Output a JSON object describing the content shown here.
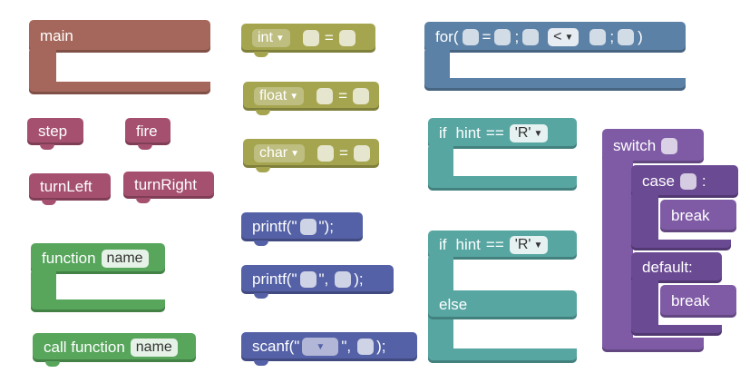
{
  "blocks": {
    "main": {
      "label": "main",
      "color": "#a5675b"
    },
    "step": {
      "label": "step",
      "color": "#a5506f"
    },
    "fire": {
      "label": "fire",
      "color": "#a5506f"
    },
    "turn_left": {
      "label": "turnLeft",
      "color": "#a5506f"
    },
    "turn_right": {
      "label": "turnRight",
      "color": "#a5506f"
    },
    "function": {
      "label": "function",
      "param": "name",
      "color": "#57a65c"
    },
    "call_function": {
      "label": "call function",
      "param": "name",
      "color": "#57a65c"
    },
    "int_decl": {
      "type": "int",
      "op": "=",
      "color": "#a5a54f"
    },
    "float_decl": {
      "type": "float",
      "op": "=",
      "color": "#a5a54f"
    },
    "char_decl": {
      "type": "char",
      "op": "=",
      "color": "#a5a54f"
    },
    "printf_1": {
      "prefix": "printf(\"",
      "suffix": "\");",
      "color": "#5461a6"
    },
    "printf_2": {
      "prefix": "printf(\"",
      "middle": "\",",
      "suffix": ");",
      "color": "#5461a6"
    },
    "scanf": {
      "prefix": "scanf(\"",
      "middle": "\",",
      "suffix": ");",
      "color": "#5461a6"
    },
    "for_loop": {
      "prefix": "for(",
      "eq": "=",
      "semi1": ";",
      "op": "<",
      "semi2": ";",
      "close": ")",
      "color": "#5c81a6"
    },
    "if_1": {
      "kw": "if",
      "var": "hint",
      "op": "==",
      "value": "'R'",
      "color": "#57a6a2"
    },
    "if_else": {
      "kw": "if",
      "var": "hint",
      "op": "==",
      "value": "'R'",
      "else": "else",
      "color": "#57a6a2"
    },
    "switch": {
      "kw": "switch",
      "case": "case",
      "colon": ":",
      "break1": "break",
      "default": "default:",
      "break2": "break",
      "color": "#7f5ba6"
    }
  }
}
